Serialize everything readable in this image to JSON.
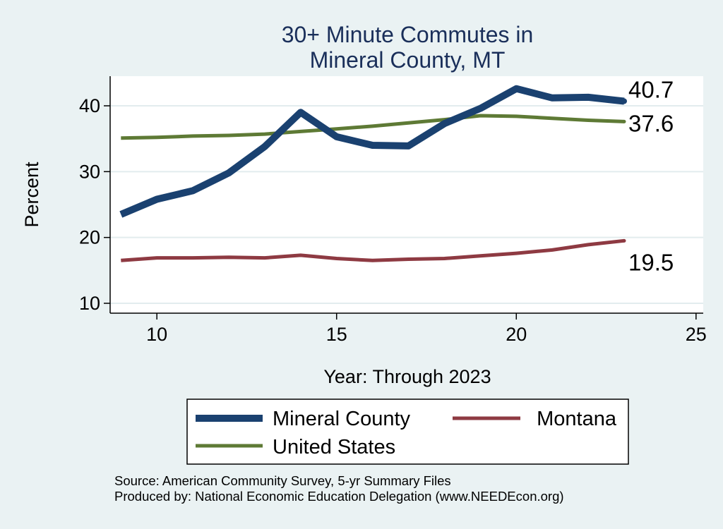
{
  "chart_data": {
    "type": "line",
    "title": [
      "30+ Minute Commutes in",
      "Mineral County, MT"
    ],
    "xlabel": "Year: Through 2023",
    "ylabel": "Percent",
    "xlim": [
      8.7,
      25.2
    ],
    "ylim": [
      8.5,
      44.5
    ],
    "xticks": [
      10,
      15,
      20,
      25
    ],
    "yticks": [
      10,
      20,
      30,
      40
    ],
    "grid": true,
    "legend_position": "bottom",
    "x": [
      9,
      10,
      11,
      12,
      13,
      14,
      15,
      16,
      17,
      18,
      19,
      20,
      21,
      22,
      23
    ],
    "series": [
      {
        "name": "Mineral County",
        "color": "#1a4170",
        "values": [
          23.5,
          25.8,
          27.1,
          29.8,
          33.8,
          39.0,
          35.3,
          34.0,
          33.9,
          37.3,
          39.6,
          42.6,
          41.2,
          41.3,
          40.7
        ],
        "end_label": "40.7"
      },
      {
        "name": "Montana",
        "color": "#8e3a42",
        "values": [
          16.5,
          16.9,
          16.9,
          17.0,
          16.9,
          17.3,
          16.8,
          16.5,
          16.7,
          16.8,
          17.2,
          17.6,
          18.1,
          18.9,
          19.5
        ],
        "end_label": "19.5"
      },
      {
        "name": "United States",
        "color": "#5e7a35",
        "values": [
          35.1,
          35.2,
          35.4,
          35.5,
          35.7,
          36.1,
          36.5,
          36.9,
          37.4,
          37.9,
          38.5,
          38.4,
          38.1,
          37.8,
          37.6
        ],
        "end_label": "37.6"
      }
    ]
  },
  "notes": [
    "Source: American Community Survey, 5-yr Summary Files",
    "Produced by: National Economic Education Delegation (www.NEEDEcon.org)"
  ]
}
